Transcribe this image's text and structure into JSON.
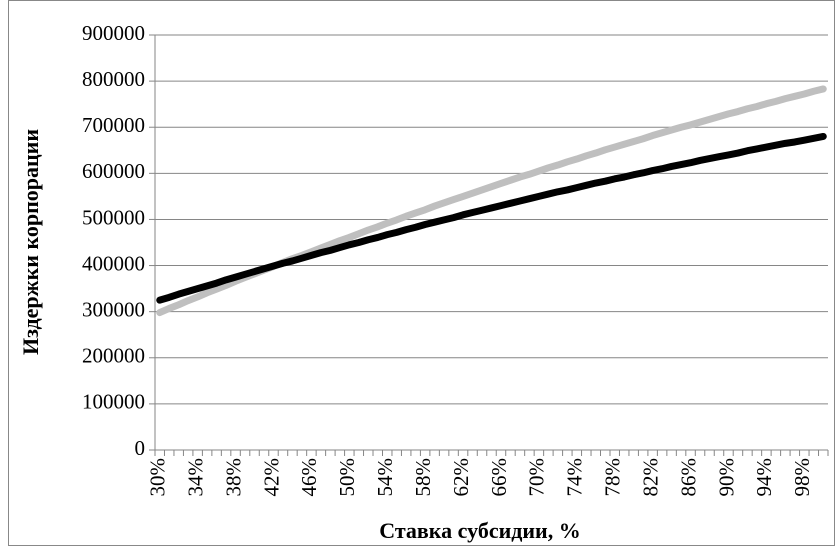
{
  "chart_data": {
    "type": "line",
    "x_label": "Ставка субсидии, %",
    "y_label": "Издержки корпорации",
    "categories": [
      "30%",
      null,
      null,
      null,
      "34%",
      null,
      null,
      null,
      "38%",
      null,
      null,
      null,
      "42%",
      null,
      null,
      null,
      "46%",
      null,
      null,
      null,
      "50%",
      null,
      null,
      null,
      "54%",
      null,
      null,
      null,
      "58%",
      null,
      null,
      null,
      "62%",
      null,
      null,
      null,
      "66%",
      null,
      null,
      null,
      "70%",
      null,
      null,
      null,
      "74%",
      null,
      null,
      null,
      "78%",
      null,
      null,
      null,
      "82%",
      null,
      null,
      null,
      "86%",
      null,
      null,
      null,
      "90%",
      null,
      null,
      null,
      "94%",
      null,
      null,
      null,
      "98%",
      null,
      null
    ],
    "series": [
      {
        "color": "#000000",
        "values": [
          325000,
          331000,
          338000,
          344000,
          350000,
          356000,
          362000,
          369000,
          375000,
          381000,
          387000,
          393000,
          399000,
          405000,
          410000,
          416000,
          422000,
          428000,
          433000,
          439000,
          445000,
          450000,
          456000,
          461000,
          467000,
          472000,
          478000,
          483000,
          489000,
          494000,
          499000,
          504000,
          510000,
          515000,
          520000,
          525000,
          530000,
          535000,
          540000,
          545000,
          550000,
          555000,
          560000,
          564000,
          569000,
          574000,
          579000,
          583000,
          588000,
          592000,
          597000,
          601000,
          606000,
          610000,
          615000,
          619000,
          623000,
          628000,
          632000,
          636000,
          640000,
          644000,
          649000,
          653000,
          657000,
          661000,
          665000,
          668000,
          672000,
          676000,
          680000
        ]
      },
      {
        "color": "#bfbfbf",
        "values": [
          298000,
          307000,
          315000,
          324000,
          332000,
          341000,
          349000,
          357000,
          366000,
          374000,
          382000,
          390000,
          398000,
          407000,
          415000,
          422000,
          430000,
          438000,
          446000,
          454000,
          461000,
          469000,
          477000,
          484000,
          492000,
          499000,
          507000,
          514000,
          521000,
          529000,
          536000,
          543000,
          550000,
          557000,
          564000,
          571000,
          578000,
          585000,
          592000,
          598000,
          605000,
          612000,
          618000,
          625000,
          631000,
          638000,
          644000,
          651000,
          657000,
          663000,
          669000,
          675000,
          682000,
          688000,
          694000,
          700000,
          705000,
          711000,
          717000,
          723000,
          729000,
          734000,
          740000,
          745000,
          751000,
          756000,
          762000,
          767000,
          772000,
          778000,
          783000
        ]
      }
    ],
    "ylim": [
      0,
      900000
    ],
    "yticks": [
      0,
      100000,
      200000,
      300000,
      400000,
      500000,
      600000,
      700000,
      800000,
      900000
    ],
    "grid": true
  }
}
